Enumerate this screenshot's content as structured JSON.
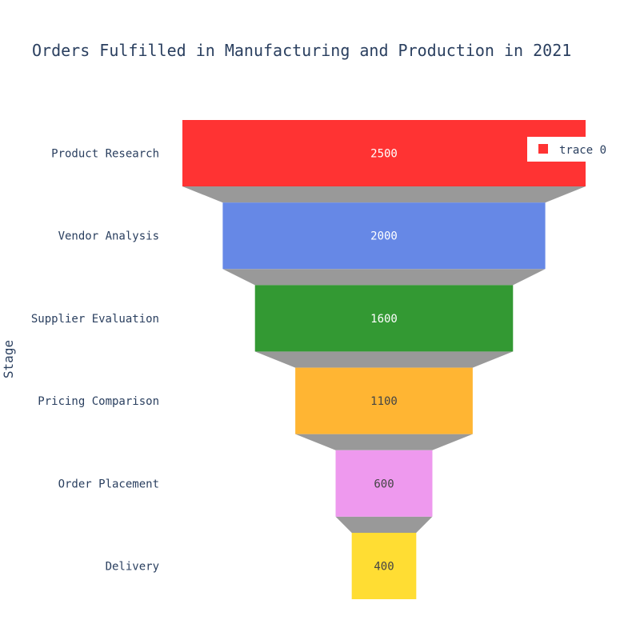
{
  "chart_data": {
    "type": "funnel",
    "title": "Orders Fulfilled in Manufacturing and Production in 2021",
    "ylabel": "Stage",
    "xlabel": "",
    "categories": [
      "Product Research",
      "Vendor Analysis",
      "Supplier Evaluation",
      "Pricing Comparison",
      "Order Placement",
      "Delivery"
    ],
    "series": [
      {
        "name": "trace 0",
        "values": [
          2500,
          2000,
          1600,
          1100,
          600,
          400
        ]
      }
    ],
    "colors": [
      "#ff3333",
      "#6688e6",
      "#339933",
      "#ffb533",
      "#ee99ee",
      "#ffdd33"
    ],
    "text_colors": [
      "#ffffff",
      "#ffffff",
      "#ffffff",
      "#444444",
      "#444444",
      "#444444"
    ],
    "connector_color": "#999999",
    "legend": {
      "position": "top-right",
      "items": [
        "trace 0"
      ]
    }
  }
}
